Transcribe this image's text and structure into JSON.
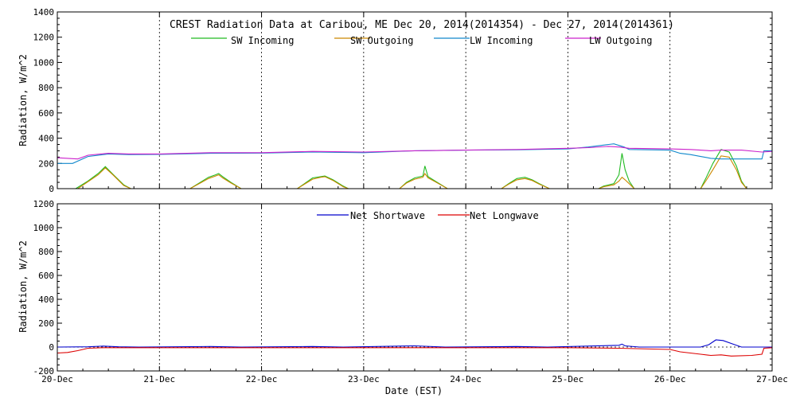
{
  "title": "CREST Radiation Data at Caribou, ME   Dec 20, 2014(2014354) - Dec 27, 2014(2014361)",
  "xlabel": "Date (EST)",
  "x_tick_labels": [
    "20-Dec",
    "21-Dec",
    "22-Dec",
    "23-Dec",
    "24-Dec",
    "25-Dec",
    "26-Dec",
    "27-Dec"
  ],
  "colors": {
    "sw_in": "#22bb22",
    "sw_out": "#cc8800",
    "lw_in": "#1188cc",
    "lw_out": "#cc22cc",
    "net_sw": "#0000cc",
    "net_lw": "#dd0000"
  },
  "chart_data": [
    {
      "type": "line",
      "title": "CREST Radiation Data at Caribou, ME   Dec 20, 2014(2014354) - Dec 27, 2014(2014361)",
      "ylabel": "Radiation, W/m^2",
      "xlim": [
        0,
        7
      ],
      "ylim": [
        0,
        1400
      ],
      "y_ticks": [
        0,
        200,
        400,
        600,
        800,
        1000,
        1200,
        1400
      ],
      "series": [
        {
          "name": "SW Incoming",
          "key": "sw_in",
          "points": [
            [
              0.0,
              0
            ],
            [
              0.18,
              0
            ],
            [
              0.3,
              60
            ],
            [
              0.4,
              120
            ],
            [
              0.47,
              175
            ],
            [
              0.55,
              110
            ],
            [
              0.65,
              30
            ],
            [
              0.72,
              0
            ],
            [
              1.3,
              0
            ],
            [
              1.38,
              40
            ],
            [
              1.48,
              90
            ],
            [
              1.55,
              110
            ],
            [
              1.58,
              120
            ],
            [
              1.62,
              95
            ],
            [
              1.7,
              50
            ],
            [
              1.8,
              0
            ],
            [
              2.35,
              0
            ],
            [
              2.42,
              40
            ],
            [
              2.5,
              85
            ],
            [
              2.58,
              95
            ],
            [
              2.62,
              100
            ],
            [
              2.7,
              70
            ],
            [
              2.8,
              20
            ],
            [
              2.85,
              0
            ],
            [
              3.35,
              0
            ],
            [
              3.42,
              50
            ],
            [
              3.5,
              85
            ],
            [
              3.58,
              100
            ],
            [
              3.6,
              180
            ],
            [
              3.63,
              95
            ],
            [
              3.7,
              60
            ],
            [
              3.82,
              0
            ],
            [
              4.35,
              0
            ],
            [
              4.42,
              40
            ],
            [
              4.5,
              80
            ],
            [
              4.58,
              90
            ],
            [
              4.65,
              70
            ],
            [
              4.72,
              40
            ],
            [
              4.82,
              0
            ],
            [
              5.3,
              0
            ],
            [
              5.35,
              20
            ],
            [
              5.45,
              40
            ],
            [
              5.5,
              110
            ],
            [
              5.53,
              280
            ],
            [
              5.56,
              150
            ],
            [
              5.6,
              60
            ],
            [
              5.65,
              0
            ],
            [
              6.3,
              0
            ],
            [
              6.35,
              80
            ],
            [
              6.42,
              200
            ],
            [
              6.5,
              310
            ],
            [
              6.58,
              290
            ],
            [
              6.65,
              180
            ],
            [
              6.7,
              60
            ],
            [
              6.75,
              0
            ],
            [
              7.0,
              0
            ]
          ]
        },
        {
          "name": "SW Outgoing",
          "key": "sw_out",
          "points": [
            [
              0.0,
              0
            ],
            [
              0.2,
              0
            ],
            [
              0.3,
              55
            ],
            [
              0.4,
              110
            ],
            [
              0.47,
              165
            ],
            [
              0.55,
              105
            ],
            [
              0.65,
              25
            ],
            [
              0.72,
              0
            ],
            [
              1.3,
              0
            ],
            [
              1.38,
              35
            ],
            [
              1.48,
              80
            ],
            [
              1.55,
              100
            ],
            [
              1.58,
              110
            ],
            [
              1.62,
              85
            ],
            [
              1.7,
              45
            ],
            [
              1.8,
              0
            ],
            [
              2.35,
              0
            ],
            [
              2.42,
              35
            ],
            [
              2.5,
              75
            ],
            [
              2.58,
              90
            ],
            [
              2.62,
              95
            ],
            [
              2.7,
              65
            ],
            [
              2.8,
              15
            ],
            [
              2.85,
              0
            ],
            [
              3.35,
              0
            ],
            [
              3.42,
              45
            ],
            [
              3.5,
              75
            ],
            [
              3.58,
              90
            ],
            [
              3.6,
              120
            ],
            [
              3.63,
              85
            ],
            [
              3.7,
              55
            ],
            [
              3.82,
              0
            ],
            [
              4.35,
              0
            ],
            [
              4.42,
              35
            ],
            [
              4.5,
              70
            ],
            [
              4.58,
              80
            ],
            [
              4.65,
              65
            ],
            [
              4.72,
              35
            ],
            [
              4.82,
              0
            ],
            [
              5.3,
              0
            ],
            [
              5.35,
              15
            ],
            [
              5.45,
              30
            ],
            [
              5.5,
              60
            ],
            [
              5.53,
              90
            ],
            [
              5.56,
              70
            ],
            [
              5.6,
              40
            ],
            [
              5.65,
              0
            ],
            [
              6.3,
              0
            ],
            [
              6.35,
              60
            ],
            [
              6.42,
              150
            ],
            [
              6.5,
              260
            ],
            [
              6.58,
              250
            ],
            [
              6.65,
              150
            ],
            [
              6.7,
              50
            ],
            [
              6.75,
              0
            ],
            [
              7.0,
              0
            ]
          ]
        },
        {
          "name": "LW Incoming",
          "key": "lw_in",
          "points": [
            [
              0.0,
              200
            ],
            [
              0.15,
              200
            ],
            [
              0.3,
              255
            ],
            [
              0.5,
              275
            ],
            [
              0.7,
              270
            ],
            [
              1.0,
              272
            ],
            [
              1.5,
              280
            ],
            [
              2.0,
              282
            ],
            [
              2.5,
              290
            ],
            [
              3.0,
              285
            ],
            [
              3.5,
              300
            ],
            [
              4.0,
              305
            ],
            [
              4.5,
              308
            ],
            [
              5.0,
              315
            ],
            [
              5.2,
              330
            ],
            [
              5.4,
              350
            ],
            [
              5.45,
              355
            ],
            [
              5.55,
              330
            ],
            [
              5.6,
              310
            ],
            [
              6.0,
              305
            ],
            [
              6.1,
              280
            ],
            [
              6.2,
              270
            ],
            [
              6.3,
              255
            ],
            [
              6.4,
              240
            ],
            [
              6.5,
              235
            ],
            [
              6.6,
              235
            ],
            [
              6.9,
              235
            ],
            [
              6.92,
              300
            ],
            [
              7.0,
              300
            ]
          ]
        },
        {
          "name": "LW Outgoing",
          "key": "lw_out",
          "points": [
            [
              0.0,
              245
            ],
            [
              0.1,
              240
            ],
            [
              0.2,
              235
            ],
            [
              0.3,
              265
            ],
            [
              0.5,
              280
            ],
            [
              0.7,
              275
            ],
            [
              1.0,
              275
            ],
            [
              1.5,
              285
            ],
            [
              2.0,
              285
            ],
            [
              2.5,
              295
            ],
            [
              3.0,
              290
            ],
            [
              3.5,
              300
            ],
            [
              4.0,
              305
            ],
            [
              4.5,
              310
            ],
            [
              5.0,
              320
            ],
            [
              5.2,
              325
            ],
            [
              5.4,
              335
            ],
            [
              5.5,
              330
            ],
            [
              5.6,
              320
            ],
            [
              6.0,
              315
            ],
            [
              6.2,
              310
            ],
            [
              6.4,
              300
            ],
            [
              6.5,
              305
            ],
            [
              6.7,
              305
            ],
            [
              6.9,
              290
            ],
            [
              7.0,
              295
            ]
          ]
        }
      ]
    },
    {
      "type": "line",
      "ylabel": "Radiation, W/m^2",
      "xlim": [
        0,
        7
      ],
      "ylim": [
        -200,
        1200
      ],
      "y_ticks": [
        -200,
        0,
        200,
        400,
        600,
        800,
        1000,
        1200
      ],
      "series": [
        {
          "name": "Net Shortwave",
          "key": "net_sw",
          "points": [
            [
              0.0,
              0
            ],
            [
              0.3,
              2
            ],
            [
              0.45,
              8
            ],
            [
              0.6,
              2
            ],
            [
              0.8,
              0
            ],
            [
              1.5,
              5
            ],
            [
              1.8,
              0
            ],
            [
              2.5,
              5
            ],
            [
              2.8,
              0
            ],
            [
              3.5,
              10
            ],
            [
              3.8,
              0
            ],
            [
              4.5,
              5
            ],
            [
              4.8,
              0
            ],
            [
              5.5,
              15
            ],
            [
              5.53,
              25
            ],
            [
              5.56,
              10
            ],
            [
              5.7,
              0
            ],
            [
              6.3,
              0
            ],
            [
              6.38,
              20
            ],
            [
              6.45,
              60
            ],
            [
              6.52,
              55
            ],
            [
              6.6,
              30
            ],
            [
              6.7,
              0
            ],
            [
              7.0,
              0
            ]
          ]
        },
        {
          "name": "Net Longwave",
          "key": "net_lw",
          "points": [
            [
              0.0,
              -50
            ],
            [
              0.1,
              -45
            ],
            [
              0.2,
              -30
            ],
            [
              0.3,
              -10
            ],
            [
              0.45,
              -5
            ],
            [
              0.6,
              -5
            ],
            [
              1.0,
              -5
            ],
            [
              1.5,
              -5
            ],
            [
              2.0,
              -5
            ],
            [
              2.5,
              -5
            ],
            [
              3.0,
              -5
            ],
            [
              3.5,
              -5
            ],
            [
              4.0,
              -5
            ],
            [
              4.5,
              -5
            ],
            [
              5.0,
              -5
            ],
            [
              5.5,
              -10
            ],
            [
              6.0,
              -20
            ],
            [
              6.1,
              -40
            ],
            [
              6.2,
              -50
            ],
            [
              6.3,
              -60
            ],
            [
              6.4,
              -70
            ],
            [
              6.5,
              -65
            ],
            [
              6.6,
              -75
            ],
            [
              6.8,
              -70
            ],
            [
              6.9,
              -60
            ],
            [
              6.92,
              -10
            ],
            [
              7.0,
              -5
            ]
          ]
        }
      ]
    }
  ]
}
